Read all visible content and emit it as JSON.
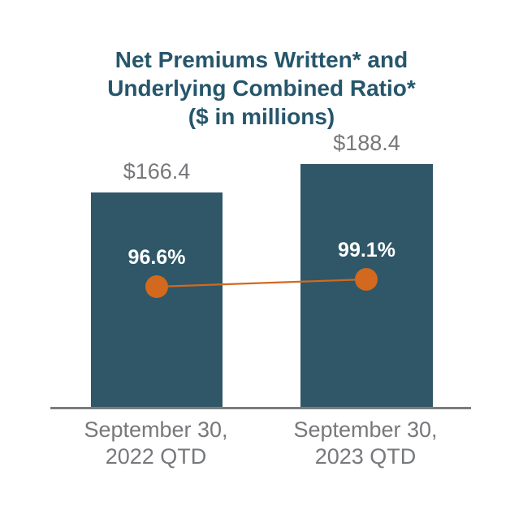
{
  "title": {
    "lines": [
      "Net Premiums Written* and",
      "Underlying Combined Ratio*",
      "($ in millions)"
    ],
    "color": "#26566B"
  },
  "chart_data": {
    "type": "bar",
    "title": "Net Premiums Written* and Underlying Combined Ratio* ($ in millions)",
    "categories": [
      "September 30, 2022 QTD",
      "September 30, 2023 QTD"
    ],
    "categories_lines": [
      [
        "September 30,",
        "2022 QTD"
      ],
      [
        "September 30,",
        "2023 QTD"
      ]
    ],
    "series": [
      {
        "name": "Net Premiums Written ($ in millions)",
        "type": "bar",
        "values": [
          166.4,
          188.4
        ],
        "data_labels": [
          "$166.4",
          "$188.4"
        ],
        "color": "#2F5767"
      },
      {
        "name": "Underlying Combined Ratio",
        "type": "line",
        "values": [
          96.6,
          99.1
        ],
        "data_labels": [
          "96.6%",
          "99.1%"
        ],
        "color": "#D2691E"
      }
    ],
    "baseline": 0,
    "grid": false,
    "legend": false,
    "value_label_color": "#77787B",
    "point_label_color": "#FFFFFF",
    "axis_line_color": "#7C7C7C",
    "title_color": "#26566B"
  }
}
